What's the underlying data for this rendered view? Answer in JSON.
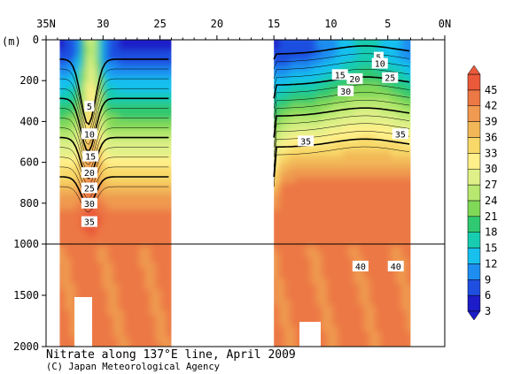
{
  "chart_data": {
    "type": "heatmap",
    "title": "Nitrate along 137°E line, April 2009",
    "credit": "(C) Japan Meteorological Agency",
    "xlabel": "",
    "ylabel": "(m)",
    "x_ticks": [
      "35N",
      "30",
      "25",
      "20",
      "15",
      "10",
      "5",
      "0N"
    ],
    "y_ticks": [
      "0",
      "200",
      "400",
      "600",
      "800",
      "1000",
      "1500",
      "2000"
    ],
    "xlim": [
      35,
      0
    ],
    "ylim": [
      0,
      2000
    ],
    "y_scale": "piecewise: 0–1000 m upper panel (stretched), 1000–2000 m lower panel (compressed)",
    "colorbar": {
      "levels": [
        3,
        6,
        9,
        12,
        15,
        18,
        21,
        24,
        27,
        30,
        33,
        36,
        39,
        42,
        45
      ],
      "colors": [
        "#1c1cc8",
        "#1f4fe0",
        "#1e8ef0",
        "#18c0ee",
        "#18ccb0",
        "#30c870",
        "#80d858",
        "#b8e870",
        "#e0f088",
        "#fff08a",
        "#f8d868",
        "#f2b858",
        "#ef9a50",
        "#ec7845",
        "#ea5a3a"
      ]
    },
    "sections": [
      {
        "lat_from": 33.8,
        "lat_to": 24.0
      },
      {
        "lat_from": 15.0,
        "lat_to": 3.0
      }
    ],
    "contour_labels": [
      {
        "text": "5",
        "lat": 31.2,
        "depth": 325
      },
      {
        "text": "10",
        "lat": 31.2,
        "depth": 460
      },
      {
        "text": "15",
        "lat": 31.1,
        "depth": 570
      },
      {
        "text": "20",
        "lat": 31.2,
        "depth": 650
      },
      {
        "text": "25",
        "lat": 31.2,
        "depth": 725
      },
      {
        "text": "30",
        "lat": 31.2,
        "depth": 800
      },
      {
        "text": "35",
        "lat": 31.2,
        "depth": 890
      },
      {
        "text": "5",
        "lat": 5.8,
        "depth": 85
      },
      {
        "text": "10",
        "lat": 5.7,
        "depth": 115
      },
      {
        "text": "15",
        "lat": 9.2,
        "depth": 170
      },
      {
        "text": "20",
        "lat": 7.9,
        "depth": 190
      },
      {
        "text": "25",
        "lat": 4.8,
        "depth": 185
      },
      {
        "text": "30",
        "lat": 8.7,
        "depth": 250
      },
      {
        "text": "35",
        "lat": 12.2,
        "depth": 495
      },
      {
        "text": "35",
        "lat": 3.9,
        "depth": 460
      },
      {
        "text": "40",
        "lat": 7.4,
        "depth": 1215
      },
      {
        "text": "40",
        "lat": 4.3,
        "depth": 1215
      }
    ]
  }
}
